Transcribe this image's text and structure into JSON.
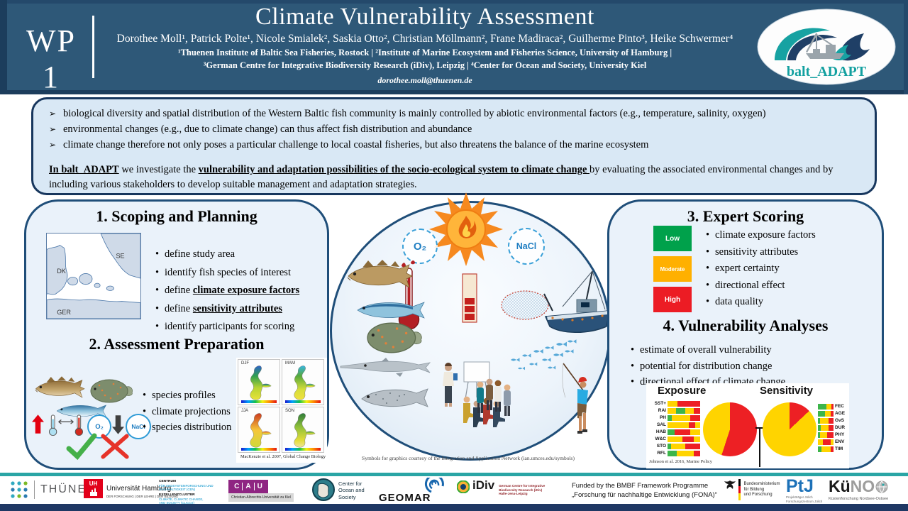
{
  "header": {
    "wp_label": "WP 1",
    "title": "Climate Vulnerability Assessment",
    "authors": "Dorothee Moll¹, Patrick Polte¹, Nicole Smialek², Saskia Otto², Christian Möllmann², Frane Madiraca², Guilherme Pinto³, Heike Schwermer⁴",
    "affiliation_line1": "¹Thuenen Institute of Baltic Sea Fisheries, Rostock | ²Institute of Marine Ecosystem and Fisheries Science, University of Hamburg |",
    "affiliation_line2": "³German Centre for Integrative Biodiversity Research (iDiv), Leipzig | ⁴Center for Ocean and Society, University Kiel",
    "email": "dorothee.moll@thuenen.de",
    "logo_label": "balt_ADAPT"
  },
  "intro": {
    "bullets": [
      "biological diversity and spatial distribution of the Western Baltic fish community is mainly controlled by abiotic environmental factors (e.g., temperature, salinity, oxygen)",
      "environmental changes (e.g., due to climate change) can thus affect fish distribution and abundance",
      "climate change therefore not only poses a particular challenge to local coastal fisheries, but also threatens the balance of the marine ecosystem"
    ],
    "statement_lead": "In balt_ADAPT",
    "statement_mid": " we investigate the ",
    "statement_underlined": "vulnerability and adaptation possibilities of the socio-ecological system to climate change ",
    "statement_rest": "by evaluating the associated environmental changes and by including various stakeholders to develop suitable management and adaptation strategies."
  },
  "section1": {
    "title": "1. Scoping and Planning",
    "map_labels": {
      "dk": "DK",
      "se": "SE",
      "ger": "GER"
    },
    "bullets": [
      {
        "text": "define study area"
      },
      {
        "text": "identify fish species of interest"
      },
      {
        "prefix": "define ",
        "underlined": "climate exposure factors"
      },
      {
        "prefix": "define ",
        "underlined": "sensitivity attributes"
      },
      {
        "text": "identify participants for scoring"
      }
    ]
  },
  "section2": {
    "title": "2. Assessment Preparation",
    "bullets": [
      "species profiles",
      "climate projections",
      "species distribution"
    ],
    "o2_label": "O₂",
    "nacl_label": "NaCl",
    "season_labels": [
      "DJF",
      "MAM",
      "JJA",
      "SON"
    ],
    "maps_caption": "MacKenzie et al. 2007, Global Change Biology"
  },
  "center_graphic": {
    "o2_label": "O₂",
    "nacl_label": "NaCl",
    "caption": "Symbols for graphics courtesy of the Integration and Application Network (ian.umces.edu/symbols)"
  },
  "section3": {
    "title": "3. Expert Scoring",
    "scores": [
      {
        "label": "Low",
        "color": "#00a14b"
      },
      {
        "label": "Moderate",
        "color": "#ffb000"
      },
      {
        "label": "High",
        "color": "#ec1c24"
      }
    ],
    "bullets": [
      "climate exposure factors",
      "sensitivity attributes",
      "expert certainty",
      "directional effect",
      "data quality"
    ]
  },
  "section4": {
    "title": "4. Vulnerability Analyses",
    "bullets": [
      "estimate of overall vulnerability",
      "potential for distribution change",
      "directional effect of climate change"
    ]
  },
  "chart_data": {
    "type": "pie+stacked-bars",
    "caption": "Johnson et al. 2016, Marine Policy",
    "colors": {
      "g": "#3cb54a",
      "y": "#ffd400",
      "r": "#ed2024"
    },
    "panels": [
      {
        "title": "Exposure",
        "pie": {
          "red_pct": 55,
          "yellow_pct": 45
        },
        "factors": [
          {
            "label": "SST+",
            "segments": [
              [
                "y",
                30
              ],
              [
                "r",
                70
              ]
            ]
          },
          {
            "label": "RAI",
            "segments": [
              [
                "y",
                25
              ],
              [
                "g",
                30
              ],
              [
                "y",
                25
              ],
              [
                "r",
                20
              ]
            ]
          },
          {
            "label": "PH",
            "segments": [
              [
                "g",
                12
              ],
              [
                "y",
                58
              ],
              [
                "r",
                30
              ]
            ]
          },
          {
            "label": "SAL",
            "segments": [
              [
                "y",
                65
              ],
              [
                "r",
                20
              ],
              [
                "y",
                15
              ]
            ]
          },
          {
            "label": "HAB",
            "segments": [
              [
                "g",
                22
              ],
              [
                "r",
                48
              ],
              [
                "y",
                30
              ]
            ]
          },
          {
            "label": "W&C",
            "segments": [
              [
                "y",
                45
              ],
              [
                "r",
                35
              ],
              [
                "y",
                20
              ]
            ]
          },
          {
            "label": "STO",
            "segments": [
              [
                "g",
                10
              ],
              [
                "y",
                45
              ],
              [
                "r",
                45
              ]
            ]
          },
          {
            "label": "RFL",
            "segments": [
              [
                "g",
                28
              ],
              [
                "y",
                52
              ],
              [
                "r",
                20
              ]
            ]
          }
        ]
      },
      {
        "title": "Sensitivity",
        "pie": {
          "red_pct": 13,
          "yellow_pct": 87
        },
        "factors": [
          {
            "label": "FEC",
            "segments": [
              [
                "g",
                55
              ],
              [
                "y",
                30
              ],
              [
                "r",
                15
              ]
            ]
          },
          {
            "label": "AGE",
            "segments": [
              [
                "g",
                45
              ],
              [
                "y",
                35
              ],
              [
                "r",
                20
              ]
            ]
          },
          {
            "label": "GvS",
            "segments": [
              [
                "g",
                12
              ],
              [
                "y",
                58
              ],
              [
                "r",
                30
              ]
            ]
          },
          {
            "label": "DUR",
            "segments": [
              [
                "g",
                18
              ],
              [
                "y",
                50
              ],
              [
                "r",
                32
              ]
            ]
          },
          {
            "label": "PHY",
            "segments": [
              [
                "g",
                12
              ],
              [
                "y",
                48
              ],
              [
                "r",
                40
              ]
            ]
          },
          {
            "label": "ENV",
            "segments": [
              [
                "y",
                30
              ],
              [
                "r",
                50
              ],
              [
                "y",
                20
              ]
            ]
          },
          {
            "label": "TIM",
            "segments": [
              [
                "g",
                22
              ],
              [
                "y",
                58
              ],
              [
                "r",
                20
              ]
            ]
          }
        ]
      }
    ]
  },
  "footer": {
    "thuenen": "THÜNEN",
    "uh_abbr": "UH",
    "uh_name": "Universität Hamburg",
    "uh_tagline": "DER FORSCHUNG | DER LEHRE | DER BILDUNG",
    "cen_line1": "CENTRUM",
    "cen_line2": "FÜR ERDSYSTEMFORSCHUNG UND",
    "cen_line3": "NACHHALTIGKEIT (CEN)",
    "cen_line4": "EXZELLENZCLUSTER",
    "cen_line5": "CLIMATE, CLIMATIC CHANGE,",
    "cen_line6": "AND SOCIETY (CLICCS)",
    "cau_c": "C",
    "cau_a": "A",
    "cau_u": "U",
    "cau_name": "Christian-Albrechts-Universität zu Kiel",
    "cos_l1": "Center for",
    "cos_l2": "Ocean and",
    "cos_l3": "Society",
    "geomar": "GEOMAR",
    "idiv": "iDiv",
    "idiv_sub1": "German Centre for Integrative",
    "idiv_sub2": "Biodiversity Research (iDiv)",
    "idiv_sub3": "Halle-Jena-Leipzig",
    "funding_line1": "Funded by the BMBF Framework Programme",
    "funding_line2": "„Forschung für nachhaltige Entwicklung (FONA)“",
    "bmbf_line1": "Bundesministerium",
    "bmbf_line2": "für Bildung",
    "bmbf_line3": "und Forschung",
    "ptj": "PtJ",
    "ptj_sub1": "Projektträger Jülich",
    "ptj_sub2": "Forschungszentrum Jülich",
    "kuno_black": "Kü",
    "kuno_gray": "NO",
    "kuno_sub": "Küstenforschung Nordsee-Ostsee"
  }
}
